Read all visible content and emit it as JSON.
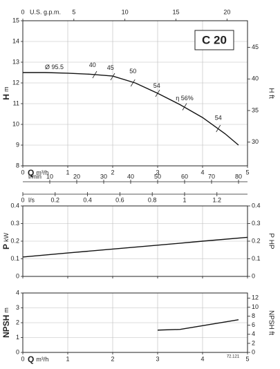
{
  "chart_data": [
    {
      "type": "line",
      "y_label": "H",
      "y_unit": "m",
      "y2_label": "H ft",
      "title": "C 20",
      "xlim": [
        0,
        5
      ],
      "xticks": [
        0,
        1,
        2,
        3,
        4,
        5
      ],
      "x_label": "Q",
      "x_unit": "m³/h",
      "ylim": [
        8,
        15
      ],
      "yticks": [
        8,
        9,
        10,
        11,
        12,
        13,
        14,
        15
      ],
      "y2lim": [
        26.25,
        49.21
      ],
      "y2ticks": [
        30,
        35,
        40,
        45
      ],
      "top_axis": {
        "label": "U.S. g.p.m.",
        "lim": [
          0,
          22.01
        ],
        "ticks": [
          0,
          5,
          10,
          15,
          20
        ]
      },
      "extra_axes": [
        {
          "label": "l/min",
          "lim": [
            0,
            83.33
          ],
          "ticks": [
            10,
            20,
            30,
            40,
            50,
            60,
            70,
            80
          ]
        },
        {
          "label": "l/s",
          "lim": [
            0,
            1.389
          ],
          "ticks": [
            0,
            0.2,
            0.4,
            0.6,
            0.8,
            1,
            1.2
          ]
        }
      ],
      "curve_labels": [
        "Ø 95.5",
        "40",
        "45",
        "50",
        "54",
        "η 56%",
        "54"
      ],
      "grid": true,
      "series": [
        {
          "name": "H",
          "color": "#111111",
          "x": [
            0,
            0.5,
            1,
            1.5,
            2,
            2.5,
            3,
            3.5,
            4,
            4.5,
            4.8
          ],
          "values": [
            12.5,
            12.5,
            12.47,
            12.42,
            12.33,
            12.0,
            11.5,
            10.95,
            10.33,
            9.55,
            9.0
          ]
        }
      ]
    },
    {
      "type": "line",
      "y_label": "P",
      "y_unit": "kW",
      "y2_label": "P HP",
      "xlim": [
        0,
        5
      ],
      "xticks": [
        0,
        1,
        2,
        3,
        4,
        5
      ],
      "ylim": [
        0,
        0.4
      ],
      "yticks": [
        0,
        0.1,
        0.2,
        0.3,
        0.4
      ],
      "y2lim": [
        0,
        0.4
      ],
      "y2ticks": [
        0,
        0.1,
        0.2,
        0.3,
        0.4
      ],
      "grid": true,
      "series": [
        {
          "name": "P",
          "color": "#111111",
          "x": [
            0,
            1,
            2,
            3,
            4,
            5
          ],
          "values": [
            0.11,
            0.133,
            0.155,
            0.177,
            0.2,
            0.222
          ]
        }
      ]
    },
    {
      "type": "line",
      "y_label": "NPSH",
      "y_unit": "m",
      "y2_label": "NPSH ft",
      "xlim": [
        0,
        5
      ],
      "xticks": [
        0,
        1,
        2,
        3,
        4,
        5
      ],
      "x_label": "Q",
      "x_unit": "m³/h",
      "ylim": [
        0,
        4
      ],
      "yticks": [
        0,
        1,
        2,
        3,
        4
      ],
      "y2lim": [
        0,
        13.12
      ],
      "y2ticks": [
        0,
        2,
        4,
        6,
        8,
        10,
        12
      ],
      "note": "72.121",
      "grid": true,
      "series": [
        {
          "name": "NPSH",
          "color": "#111111",
          "x": [
            3,
            3.5,
            4,
            4.5,
            4.8
          ],
          "values": [
            1.5,
            1.55,
            1.8,
            2.05,
            2.2
          ]
        }
      ]
    }
  ]
}
